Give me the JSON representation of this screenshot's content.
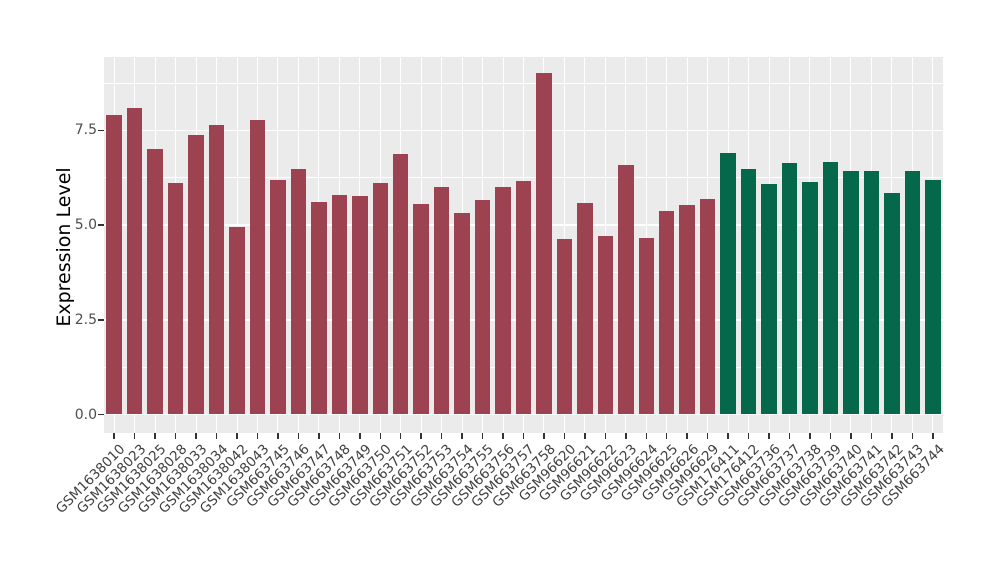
{
  "figure": {
    "background": "#FFFFFF",
    "panel_background": "#EBEBEB",
    "grid_color": "#FFFFFF",
    "tick_mark_color": "#333333",
    "tick_label_color": "#4D4D4D",
    "axis_title_color": "#000000"
  },
  "chart_data": {
    "type": "bar",
    "title": "",
    "xlabel": "",
    "ylabel": "Expression Level",
    "ylim": [
      -0.47,
      9.45
    ],
    "y_ticks": [
      0,
      2.5,
      5,
      7.5
    ],
    "y_tick_labels": [
      "0.0",
      "2.5",
      "5.0",
      "7.5"
    ],
    "y_minor_ticks": [
      1.25,
      3.75,
      6.25,
      8.75
    ],
    "grid": "white major+minor horizontal lines, white vertical line at each category, on grey panel",
    "legend_position": "none",
    "x_label_rotation_deg": 45,
    "group_colors": {
      "red": "#9C4250",
      "green": "#05684A"
    },
    "categories": [
      "GSM1638010",
      "GSM1638023",
      "GSM1638025",
      "GSM1638028",
      "GSM1638033",
      "GSM1638034",
      "GSM1638042",
      "GSM1638043",
      "GSM663745",
      "GSM663746",
      "GSM663747",
      "GSM663748",
      "GSM663749",
      "GSM663750",
      "GSM663751",
      "GSM663752",
      "GSM663753",
      "GSM663754",
      "GSM663755",
      "GSM663756",
      "GSM663757",
      "GSM663758",
      "GSM96620",
      "GSM96621",
      "GSM96622",
      "GSM96623",
      "GSM96624",
      "GSM96625",
      "GSM96626",
      "GSM96629",
      "GSM176411",
      "GSM176412",
      "GSM663736",
      "GSM663737",
      "GSM663738",
      "GSM663739",
      "GSM663740",
      "GSM663741",
      "GSM663742",
      "GSM663743",
      "GSM663744"
    ],
    "values": [
      7.9,
      8.1,
      7.0,
      6.1,
      7.37,
      7.65,
      4.94,
      7.78,
      6.2,
      6.48,
      5.6,
      5.8,
      5.78,
      6.12,
      6.87,
      5.57,
      6.0,
      5.32,
      5.66,
      6.02,
      6.16,
      9.02,
      4.64,
      5.59,
      4.71,
      6.6,
      4.66,
      5.38,
      5.54,
      5.7,
      6.9,
      6.49,
      6.08,
      6.64,
      6.15,
      6.66,
      6.42,
      6.44,
      5.86,
      6.42,
      6.18
    ],
    "groups": [
      "red",
      "red",
      "red",
      "red",
      "red",
      "red",
      "red",
      "red",
      "red",
      "red",
      "red",
      "red",
      "red",
      "red",
      "red",
      "red",
      "red",
      "red",
      "red",
      "red",
      "red",
      "red",
      "red",
      "red",
      "red",
      "red",
      "red",
      "red",
      "red",
      "red",
      "green",
      "green",
      "green",
      "green",
      "green",
      "green",
      "green",
      "green",
      "green",
      "green",
      "green"
    ]
  }
}
